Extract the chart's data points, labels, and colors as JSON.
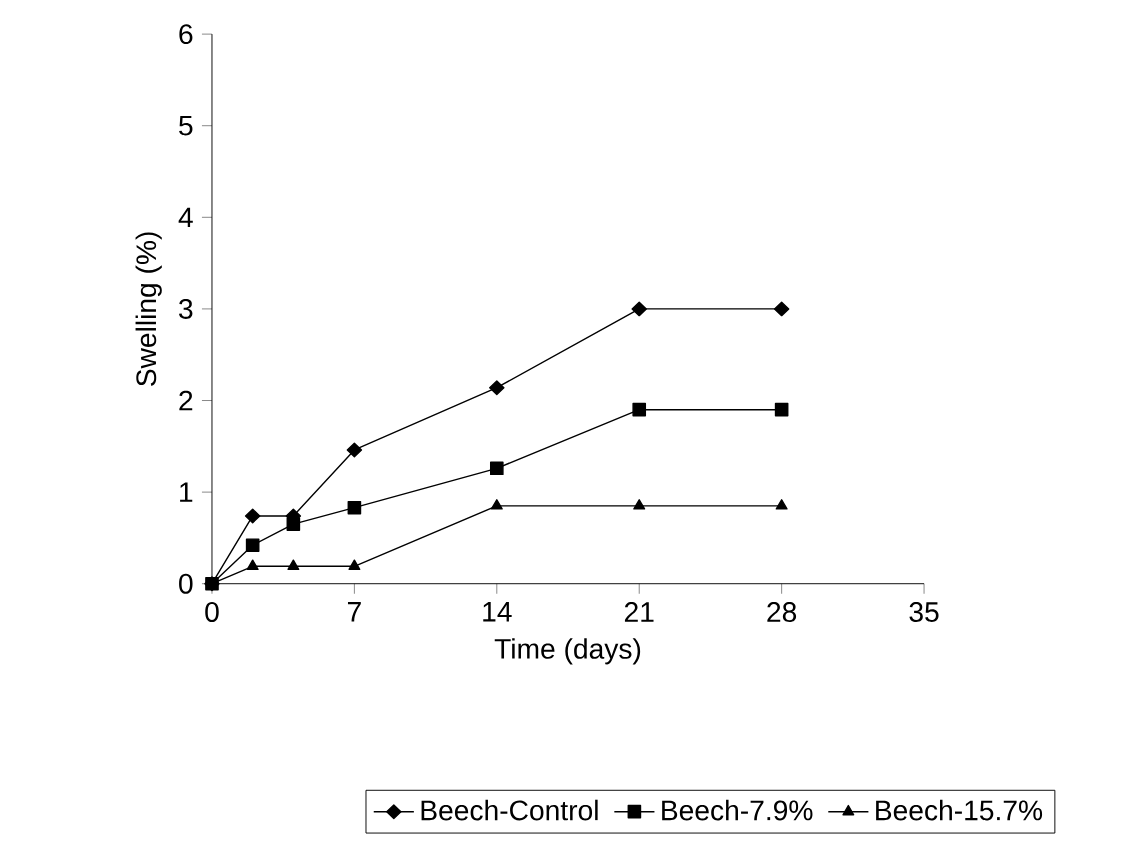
{
  "chart_data": {
    "type": "line",
    "xlabel": "Time (days)",
    "ylabel": "Swelling (%)",
    "xlim": [
      0,
      35
    ],
    "xticks": [
      0,
      7,
      14,
      21,
      28,
      35
    ],
    "ylim": [
      0,
      6
    ],
    "yticks": [
      0,
      1,
      2,
      3,
      4,
      5,
      6
    ],
    "legend": "bottom",
    "grid": false,
    "series": [
      {
        "name": "Beech-Control",
        "color": "#000000",
        "marker": "diamond",
        "x": [
          0,
          2,
          4,
          7,
          14,
          21,
          28
        ],
        "values": [
          0,
          0.74,
          0.74,
          1.46,
          2.14,
          3,
          3
        ]
      },
      {
        "name": "Beech-7.9%",
        "color": "#000000",
        "marker": "square",
        "x": [
          0,
          2,
          4,
          7,
          14,
          21,
          28
        ],
        "values": [
          0,
          0.42,
          0.65,
          0.83,
          1.26,
          1.9,
          1.9
        ]
      },
      {
        "name": "Beech-15.7%",
        "color": "#000000",
        "marker": "triangle",
        "x": [
          0,
          2,
          4,
          7,
          14,
          21,
          28
        ],
        "values": [
          0,
          0.19,
          0.19,
          0.19,
          0.85,
          0.85,
          0.85
        ]
      }
    ]
  }
}
